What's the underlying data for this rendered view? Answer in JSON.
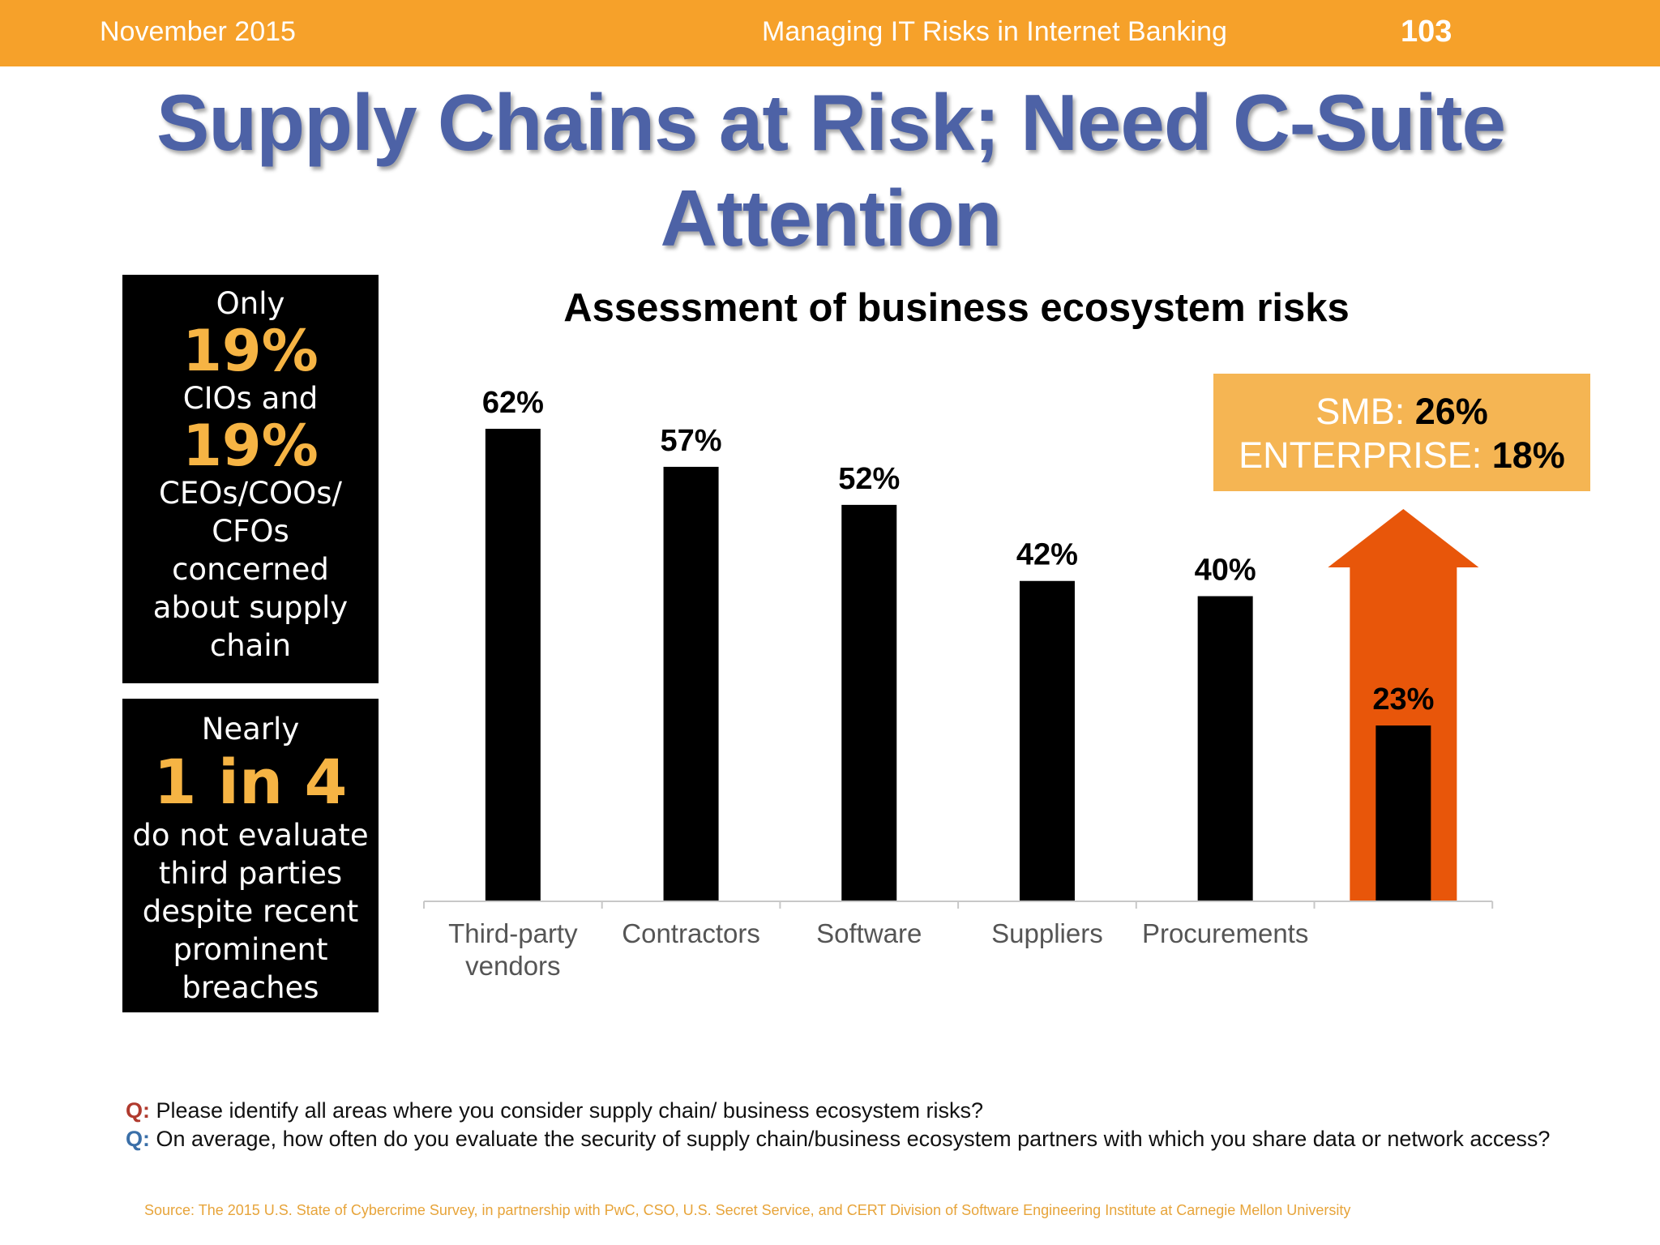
{
  "header": {
    "date": "November 2015",
    "course": "Managing IT Risks in Internet Banking",
    "page": "103"
  },
  "title": "Supply Chains at Risk; Need C-Suite Attention",
  "box1": {
    "line1": "Only",
    "stat1": "19%",
    "line2": "CIOs and",
    "stat2": "19%",
    "line3": "CEOs/COOs/",
    "line4": "CFOs",
    "line5": "concerned",
    "line6": "about supply",
    "line7": "chain"
  },
  "box2": {
    "line1": "Nearly",
    "stat": "1 in 4",
    "line2": "do not evaluate",
    "line3": "third parties",
    "line4": "despite recent",
    "line5": "prominent",
    "line6": "breaches"
  },
  "callout": {
    "smb_label": "SMB: ",
    "smb_value": "26%",
    "ent_label": "ENTERPRISE: ",
    "ent_value": "18%"
  },
  "questions": {
    "q_marker": "Q:",
    "q1": " Please identify all areas where you consider supply chain/ business ecosystem risks?",
    "q2": " On average, how often do you evaluate the security of supply chain/business ecosystem partners with which you share data or network access?"
  },
  "source": "Source: The 2015 U.S. State of Cybercrime Survey, in partnership with PwC, CSO, U.S. Secret Service, and CERT Division of Software Engineering Institute at Carnegie Mellon University",
  "colors": {
    "header": "#f6a12a",
    "title": "#4d62a6",
    "bar": "#000000",
    "arrow": "#e8560a",
    "callout": "#f5b553",
    "stat": "#f6b444"
  },
  "chart_data": {
    "type": "bar",
    "title": "Assessment of business ecosystem risks",
    "categories": [
      [
        "Third-party",
        "vendors"
      ],
      [
        "Contractors"
      ],
      [
        "Software"
      ],
      [
        "Suppliers"
      ],
      [
        "Procurements"
      ],
      [
        ""
      ]
    ],
    "values": [
      62,
      57,
      52,
      42,
      40,
      23
    ],
    "labels": [
      "62%",
      "57%",
      "52%",
      "42%",
      "40%",
      "23%"
    ],
    "ylim": [
      0,
      62
    ],
    "highlight_index": 5,
    "highlight_shape": "up-arrow",
    "xlabel": "",
    "ylabel": ""
  }
}
